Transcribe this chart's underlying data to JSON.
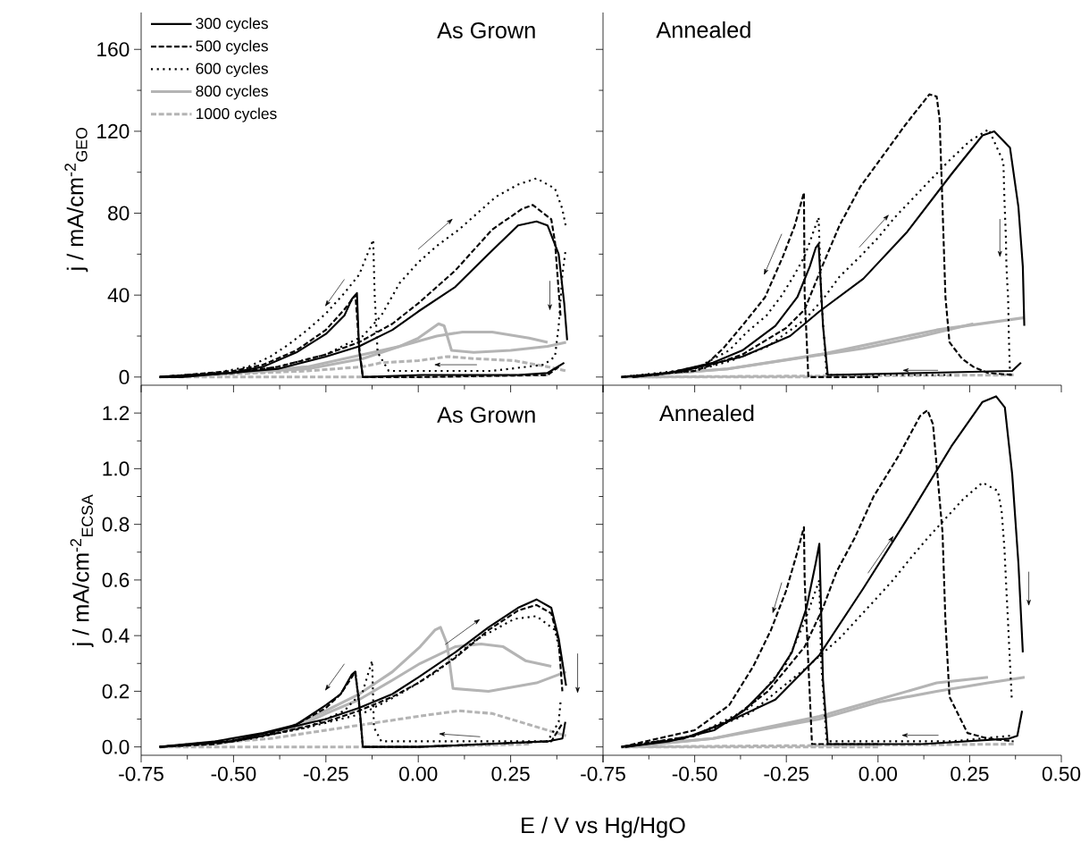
{
  "chart_data": [
    {
      "type": "line",
      "ylabel": "j / mA/cm$^{-2}$$_{GEO}$",
      "annotations": [
        "As Grown"
      ],
      "legend": "top left",
      "tick_labels": "y",
      "xlim": [
        -0.75,
        0.5
      ],
      "ylim": [
        -4,
        178
      ],
      "xticks": [
        -0.75,
        -0.5,
        -0.25,
        0,
        0.25,
        0.5
      ],
      "yticks": [
        0,
        40,
        80,
        120,
        160
      ],
      "series": [
        {
          "name": "300 cycles",
          "color": "#000000",
          "line_style": "solid",
          "x": [
            -0.7,
            -0.51,
            -0.38,
            -0.25,
            -0.16,
            -0.07,
            0.0,
            0.1,
            0.19,
            0.27,
            0.32,
            0.35,
            0.38,
            0.395,
            0.403
          ],
          "values": [
            0,
            2,
            4,
            10,
            15,
            23,
            32,
            44,
            60,
            74,
            76,
            74,
            60,
            36,
            18
          ]
        },
        {
          "color": "#000000",
          "line_style": "solid",
          "x": [
            0.395,
            0.35,
            0.27,
            0.01,
            -0.15,
            -0.16,
            -0.166,
            -0.18,
            -0.2,
            -0.25,
            -0.33,
            -0.42,
            -0.51,
            -0.64,
            -0.7
          ],
          "values": [
            7,
            2,
            1,
            1,
            0,
            13,
            41,
            38,
            30,
            21,
            12,
            5,
            2,
            0,
            0
          ]
        },
        {
          "name": "500 cycles",
          "color": "#000000",
          "line_style": "dashed",
          "x": [
            -0.7,
            -0.5,
            -0.38,
            -0.25,
            -0.16,
            -0.07,
            0.0,
            0.1,
            0.2,
            0.28,
            0.31,
            0.36,
            0.37,
            0.385
          ],
          "values": [
            0,
            2,
            5,
            11,
            17,
            26,
            36,
            52,
            72,
            82,
            84,
            77,
            66,
            30
          ]
        },
        {
          "color": "#000000",
          "line_style": "dashed",
          "x": [
            0.38,
            0.35,
            0.0,
            -0.15,
            -0.16,
            -0.17,
            -0.2,
            -0.25,
            -0.33,
            -0.42,
            -0.5,
            -0.7
          ],
          "values": [
            5,
            1,
            0,
            0,
            15,
            40,
            33,
            23,
            13,
            6,
            3,
            0
          ]
        },
        {
          "name": "600 cycles",
          "color": "#000000",
          "line_style": "dotted",
          "x": [
            -0.7,
            -0.5,
            -0.38,
            -0.25,
            -0.15,
            -0.1,
            -0.05,
            0.0,
            0.05,
            0.11,
            0.16,
            0.21,
            0.27,
            0.32,
            0.37,
            0.39,
            0.4
          ],
          "values": [
            0,
            2,
            5,
            11,
            20,
            30,
            46,
            56,
            64,
            72,
            80,
            88,
            94,
            97,
            92,
            82,
            73
          ]
        },
        {
          "color": "#000000",
          "line_style": "dotted",
          "x": [
            0.398,
            0.39,
            0.38,
            0.37,
            0.34,
            0.2,
            0.0,
            -0.08,
            -0.11,
            -0.118,
            -0.122,
            -0.16,
            -0.2,
            -0.25,
            -0.3,
            -0.35,
            -0.4,
            -0.46,
            -0.55,
            -0.7
          ],
          "values": [
            61,
            50,
            25,
            10,
            6,
            3,
            3,
            3,
            12,
            40,
            67,
            50,
            41,
            31,
            23,
            16,
            10,
            5,
            2,
            0
          ]
        },
        {
          "name": "800 cycles",
          "color": "#b4b4b4",
          "line_style": "solid",
          "x": [
            -0.7,
            -0.5,
            -0.3,
            -0.15,
            -0.05,
            0.0,
            0.055,
            0.07,
            0.09,
            0.15,
            0.25,
            0.35,
            0.4
          ],
          "values": [
            0,
            2,
            4,
            9,
            15,
            19,
            26,
            25,
            13,
            12,
            13,
            15,
            17
          ]
        },
        {
          "color": "#b4b4b4",
          "line_style": "solid",
          "x": [
            0.35,
            0.3,
            0.2,
            0.12,
            0.05,
            -0.05,
            -0.15,
            -0.3,
            -0.5,
            -0.7
          ],
          "values": [
            17,
            19,
            22,
            22,
            20,
            15,
            11,
            5,
            2,
            0
          ]
        },
        {
          "name": "1000 cycles",
          "color": "#b4b4b4",
          "line_style": "dashed",
          "x": [
            -0.7,
            -0.3,
            -0.15,
            -0.1,
            0.0,
            0.08,
            0.15,
            0.26,
            0.35,
            0.4
          ],
          "values": [
            0,
            3,
            5,
            7,
            8,
            10,
            9,
            8,
            5,
            3
          ]
        },
        {
          "color": "#b4b4b4",
          "line_style": "dashed",
          "x": [
            0.35,
            0.0,
            -0.35,
            -0.7
          ],
          "values": [
            1,
            0,
            0,
            0
          ]
        }
      ]
    },
    {
      "type": "line",
      "annotations": [
        "Annealed"
      ],
      "tick_labels": false,
      "xlim": [
        -0.75,
        0.5
      ],
      "ylim": [
        -4,
        178
      ],
      "xticks": [
        -0.75,
        -0.5,
        -0.25,
        0,
        0.25,
        0.5
      ],
      "yticks": [
        0,
        40,
        80,
        120,
        160
      ],
      "series": [
        {
          "color": "#000000",
          "line_style": "solid",
          "x": [
            -0.67,
            -0.53,
            -0.37,
            -0.24,
            -0.16,
            -0.04,
            0.08,
            0.2,
            0.285,
            0.317,
            0.36,
            0.383,
            0.395,
            0.399
          ],
          "values": [
            0,
            3,
            10,
            20,
            32,
            48,
            71,
            99,
            118,
            120,
            112,
            83,
            54,
            25
          ]
        },
        {
          "color": "#000000",
          "line_style": "solid",
          "x": [
            0.39,
            0.366,
            0.12,
            -0.137,
            -0.15,
            -0.162,
            -0.17,
            -0.186,
            -0.22,
            -0.28,
            -0.37,
            -0.45,
            -0.57,
            -0.67
          ],
          "values": [
            7,
            3,
            2,
            1,
            25,
            65,
            63,
            54,
            39,
            25,
            13,
            7,
            2,
            0
          ]
        },
        {
          "color": "#000000",
          "line_style": "dashed",
          "x": [
            -0.7,
            -0.5,
            -0.37,
            -0.25,
            -0.2,
            -0.15,
            -0.105,
            -0.048,
            0.009,
            0.074,
            0.14,
            0.16,
            0.168,
            0.176,
            0.184,
            0.195,
            0.229,
            0.26,
            0.3,
            0.37
          ],
          "values": [
            0,
            3,
            11,
            24,
            33,
            55,
            74,
            93,
            107,
            123,
            138,
            137,
            126,
            83,
            39,
            17,
            9,
            5,
            2,
            1
          ]
        },
        {
          "color": "#000000",
          "line_style": "dashed",
          "x": [
            0.0,
            -0.19,
            -0.2,
            -0.202,
            -0.227,
            -0.259,
            -0.308,
            -0.366,
            -0.422,
            -0.47,
            -0.6,
            -0.7
          ],
          "values": [
            0,
            0,
            40,
            90,
            74,
            59,
            39,
            26,
            14,
            6,
            1,
            0
          ]
        },
        {
          "color": "#000000",
          "line_style": "dotted",
          "x": [
            -0.7,
            -0.5,
            -0.4,
            -0.3,
            -0.2,
            -0.15,
            -0.105,
            -0.048,
            0.0,
            0.046,
            0.094,
            0.147,
            0.196,
            0.249,
            0.302,
            0.342,
            0.345,
            0.349,
            0.35,
            0.352,
            0.355,
            0.357,
            0.36
          ],
          "values": [
            0,
            3,
            8,
            15,
            28,
            38,
            49,
            59,
            68,
            78,
            87,
            97,
            106,
            115,
            121,
            105,
            86,
            67,
            56,
            48,
            38,
            19,
            2
          ]
        },
        {
          "color": "#000000",
          "line_style": "dotted",
          "x": [
            0.2,
            -0.14,
            -0.155,
            -0.162,
            -0.182,
            -0.2,
            -0.231,
            -0.262,
            -0.304,
            -0.357,
            -0.406,
            -0.5,
            -0.7
          ],
          "values": [
            1,
            1,
            40,
            78,
            68,
            59,
            49,
            40,
            30,
            22,
            13,
            4,
            0
          ]
        },
        {
          "color": "#b4b4b4",
          "line_style": "solid",
          "x": [
            -0.7,
            -0.41,
            -0.16,
            0.0,
            0.16,
            0.4
          ],
          "values": [
            0,
            4,
            11,
            17,
            23,
            29
          ]
        },
        {
          "color": "#b4b4b4",
          "line_style": "solid",
          "x": [
            0.26,
            0.12,
            -0.04,
            -0.41,
            -0.7
          ],
          "values": [
            26,
            20,
            14,
            4,
            0
          ]
        },
        {
          "color": "#b4b4b4",
          "line_style": "dashed",
          "x": [
            -0.7,
            0.37
          ],
          "values": [
            0,
            1
          ]
        },
        {
          "color": "#b4b4b4",
          "line_style": "dashed",
          "x": [
            0.0,
            -0.7
          ],
          "values": [
            0,
            0
          ]
        }
      ]
    },
    {
      "type": "line",
      "ylabel": "j / mA/cm$^{-2}$$_{ECSA}$",
      "xlabel": "E / V vs Hg/HgO",
      "annotations": [
        "As Grown"
      ],
      "xlim": [
        -0.75,
        0.5
      ],
      "ylim": [
        -0.03,
        1.3
      ],
      "xticks": [
        -0.75,
        {
          "value": -0.5,
          "label": "-0.50"
        },
        {
          "value": -0.25,
          "label": "-0.25"
        },
        {
          "value": 0,
          "label": "0.00"
        },
        0.25,
        {
          "value": 0.5,
          "label": null
        }
      ],
      "yticks": [
        {
          "value": 0,
          "label": "0.0"
        },
        0.2,
        0.4,
        0.6,
        0.8,
        {
          "value": 1,
          "label": "1.0"
        },
        1.2
      ],
      "series": [
        {
          "color": "#000000",
          "line_style": "solid",
          "x": [
            -0.7,
            -0.51,
            -0.38,
            -0.25,
            -0.16,
            -0.07,
            0.0,
            0.1,
            0.19,
            0.27,
            0.32,
            0.36,
            0.38,
            0.4
          ],
          "values": [
            0,
            0.02,
            0.06,
            0.1,
            0.14,
            0.19,
            0.25,
            0.34,
            0.43,
            0.5,
            0.53,
            0.5,
            0.39,
            0.22
          ]
        },
        {
          "color": "#000000",
          "line_style": "solid",
          "x": [
            0.398,
            0.39,
            0.35,
            0.0,
            -0.15,
            -0.16,
            -0.171,
            -0.18,
            -0.21,
            -0.25,
            -0.33,
            -0.42,
            -0.55,
            -0.7
          ],
          "values": [
            0.09,
            0.03,
            0.02,
            0,
            0,
            0.16,
            0.27,
            0.26,
            0.19,
            0.15,
            0.08,
            0.05,
            0.02,
            0
          ]
        },
        {
          "color": "#000000",
          "line_style": "dashed",
          "x": [
            -0.7,
            -0.5,
            -0.38,
            -0.25,
            -0.16,
            -0.07,
            0.0,
            0.1,
            0.19,
            0.27,
            0.32,
            0.36,
            0.38,
            0.39
          ],
          "values": [
            0,
            0.02,
            0.05,
            0.09,
            0.13,
            0.18,
            0.23,
            0.32,
            0.42,
            0.49,
            0.51,
            0.48,
            0.38,
            0.2
          ]
        },
        {
          "color": "#000000",
          "line_style": "dashed",
          "x": [
            0.388,
            0.36,
            0.0,
            -0.15,
            -0.16,
            -0.17,
            -0.21,
            -0.25,
            -0.33,
            -0.42,
            -0.55,
            -0.7
          ],
          "values": [
            0.08,
            0.02,
            0,
            0,
            0.15,
            0.27,
            0.19,
            0.14,
            0.08,
            0.04,
            0.01,
            0
          ]
        },
        {
          "color": "#000000",
          "line_style": "dotted",
          "x": [
            -0.7,
            -0.5,
            -0.3,
            -0.15,
            -0.05,
            0.05,
            0.15,
            0.26,
            0.32,
            0.37,
            0.39
          ],
          "values": [
            0,
            0.02,
            0.07,
            0.12,
            0.19,
            0.27,
            0.38,
            0.46,
            0.47,
            0.42,
            0.3
          ]
        },
        {
          "color": "#000000",
          "line_style": "dotted",
          "x": [
            0.385,
            0.38,
            0.35,
            0.2,
            0.0,
            -0.1,
            -0.12,
            -0.125,
            -0.15,
            -0.2,
            -0.3,
            -0.45,
            -0.7
          ],
          "values": [
            0.16,
            0.09,
            0.02,
            0.02,
            0.02,
            0.02,
            0.07,
            0.31,
            0.2,
            0.13,
            0.07,
            0.03,
            0
          ]
        },
        {
          "color": "#b4b4b4",
          "line_style": "solid",
          "x": [
            -0.7,
            -0.55,
            -0.45,
            -0.35,
            -0.25,
            -0.16,
            -0.07,
            0.005,
            0.045,
            0.06,
            0.078,
            0.094,
            0.19,
            0.32,
            0.4
          ],
          "values": [
            0,
            0.01,
            0.03,
            0.07,
            0.13,
            0.19,
            0.27,
            0.36,
            0.42,
            0.43,
            0.37,
            0.21,
            0.2,
            0.23,
            0.27
          ]
        },
        {
          "color": "#b4b4b4",
          "line_style": "solid",
          "x": [
            0.36,
            0.29,
            0.23,
            0.17,
            0.1,
            0.005,
            -0.07,
            -0.16,
            -0.25,
            -0.33,
            -0.46,
            -0.7
          ],
          "values": [
            0.29,
            0.31,
            0.36,
            0.37,
            0.36,
            0.3,
            0.24,
            0.17,
            0.12,
            0.07,
            0.03,
            0
          ]
        },
        {
          "color": "#b4b4b4",
          "line_style": "dashed",
          "x": [
            -0.7,
            -0.4,
            -0.2,
            -0.1,
            0.0,
            0.11,
            0.2,
            0.3,
            0.4
          ],
          "values": [
            0,
            0.03,
            0.07,
            0.09,
            0.11,
            0.13,
            0.12,
            0.08,
            0.04
          ]
        },
        {
          "color": "#b4b4b4",
          "line_style": "dashed",
          "x": [
            0.3,
            0.0,
            -0.15,
            -0.7
          ],
          "values": [
            0.01,
            0,
            0,
            0
          ]
        }
      ]
    },
    {
      "type": "line",
      "annotations": [
        "Annealed"
      ],
      "tick_labels": "x",
      "xlim": [
        -0.75,
        0.5
      ],
      "ylim": [
        -0.03,
        1.3
      ],
      "xticks": [
        -0.75,
        {
          "value": -0.5,
          "label": "-0.50"
        },
        {
          "value": -0.25,
          "label": "-0.25"
        },
        {
          "value": 0,
          "label": "0.00"
        },
        0.25,
        {
          "value": 0.5,
          "label": "0.50"
        }
      ],
      "yticks": [
        0,
        0.2,
        0.4,
        0.6,
        0.8,
        1,
        1.2
      ],
      "series": [
        {
          "color": "#000000",
          "line_style": "solid",
          "x": [
            -0.69,
            -0.53,
            -0.41,
            -0.28,
            -0.16,
            -0.04,
            0.08,
            0.2,
            0.285,
            0.322,
            0.346,
            0.366,
            0.383,
            0.395
          ],
          "values": [
            0,
            0.03,
            0.09,
            0.17,
            0.33,
            0.57,
            0.82,
            1.08,
            1.24,
            1.26,
            1.22,
            0.98,
            0.66,
            0.34
          ]
        },
        {
          "color": "#000000",
          "line_style": "solid",
          "x": [
            0.393,
            0.38,
            0.358,
            0.12,
            -0.137,
            -0.15,
            -0.16,
            -0.17,
            -0.195,
            -0.235,
            -0.284,
            -0.366,
            -0.447,
            -0.57,
            -0.69
          ],
          "values": [
            0.13,
            0.04,
            0.03,
            0.01,
            0.01,
            0.24,
            0.73,
            0.66,
            0.5,
            0.34,
            0.24,
            0.13,
            0.06,
            0.02,
            0
          ]
        },
        {
          "color": "#000000",
          "line_style": "dashed",
          "x": [
            -0.7,
            -0.5,
            -0.4,
            -0.3,
            -0.2,
            -0.15,
            -0.113,
            -0.064,
            -0.012,
            0.058,
            0.115,
            0.135,
            0.15,
            0.158,
            0.176,
            0.184,
            0.195,
            0.244,
            0.3,
            0.37
          ],
          "values": [
            0,
            0.04,
            0.1,
            0.2,
            0.36,
            0.5,
            0.63,
            0.75,
            0.9,
            1.05,
            1.19,
            1.21,
            1.16,
            1.04,
            0.77,
            0.45,
            0.18,
            0.05,
            0.03,
            0.02
          ]
        },
        {
          "color": "#000000",
          "line_style": "dashed",
          "x": [
            0.0,
            -0.18,
            -0.19,
            -0.2,
            -0.202,
            -0.22,
            -0.251,
            -0.292,
            -0.34,
            -0.406,
            -0.5,
            -0.7
          ],
          "values": [
            0.01,
            0.01,
            0.3,
            0.6,
            0.79,
            0.7,
            0.56,
            0.42,
            0.29,
            0.15,
            0.06,
            0
          ]
        },
        {
          "color": "#000000",
          "line_style": "dotted",
          "x": [
            -0.7,
            -0.5,
            -0.35,
            -0.2,
            -0.105,
            -0.056,
            0.0,
            0.041,
            0.09,
            0.135,
            0.232,
            0.285,
            0.327,
            0.337,
            0.345,
            0.35,
            0.355,
            0.36,
            0.365
          ],
          "values": [
            0,
            0.04,
            0.12,
            0.28,
            0.39,
            0.46,
            0.54,
            0.6,
            0.68,
            0.75,
            0.89,
            0.95,
            0.92,
            0.85,
            0.71,
            0.57,
            0.44,
            0.3,
            0.17
          ]
        },
        {
          "color": "#000000",
          "line_style": "dotted",
          "x": [
            0.36,
            0.2,
            -0.14,
            -0.155,
            -0.16,
            -0.2,
            -0.25,
            -0.35,
            -0.5,
            -0.7
          ],
          "values": [
            0.04,
            0.02,
            0.02,
            0.3,
            0.6,
            0.45,
            0.3,
            0.14,
            0.04,
            0
          ]
        },
        {
          "color": "#b4b4b4",
          "line_style": "solid",
          "x": [
            -0.7,
            -0.45,
            -0.16,
            0.0,
            0.16,
            0.3,
            0.4
          ],
          "values": [
            0,
            0.03,
            0.1,
            0.16,
            0.2,
            0.23,
            0.25
          ]
        },
        {
          "color": "#b4b4b4",
          "line_style": "solid",
          "x": [
            0.3,
            0.16,
            0.0,
            -0.16,
            -0.45,
            -0.7
          ],
          "values": [
            0.25,
            0.23,
            0.17,
            0.11,
            0.03,
            0
          ]
        },
        {
          "color": "#b4b4b4",
          "line_style": "dashed",
          "x": [
            -0.7,
            0.37
          ],
          "values": [
            0,
            0.01
          ]
        },
        {
          "color": "#b4b4b4",
          "line_style": "dashed",
          "x": [
            0.0,
            -0.7
          ],
          "values": [
            0,
            0
          ]
        }
      ]
    }
  ]
}
